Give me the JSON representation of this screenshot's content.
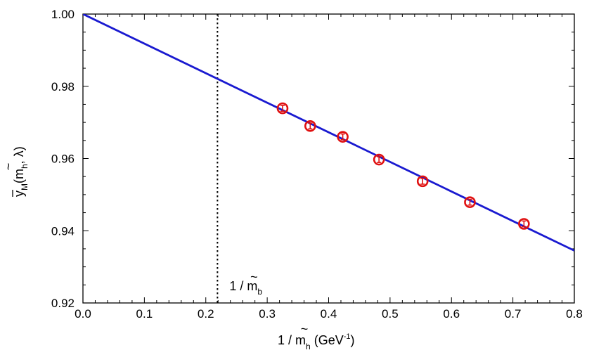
{
  "chart_data": {
    "type": "scatter",
    "xlim": [
      0.0,
      0.8
    ],
    "ylim": [
      0.92,
      1.0
    ],
    "xticks": [
      "0.0",
      "0.1",
      "0.2",
      "0.3",
      "0.4",
      "0.5",
      "0.6",
      "0.7",
      "0.8"
    ],
    "yticks": [
      "0.92",
      "0.94",
      "0.96",
      "0.98",
      "1.00"
    ],
    "xlabel": {
      "prefix": "1 / ",
      "symbol": "m",
      "tilde": "~",
      "subscript": "h",
      "unit_open": "  (GeV",
      "unit_sup": "-1",
      "unit_close": ")"
    },
    "ylabel": {
      "symbol": "y",
      "subscript": "M",
      "open": "(",
      "m": "m",
      "tilde": "~",
      "m_sub": "h",
      "rest": ", λ)"
    },
    "points": [
      {
        "x": 0.325,
        "y": 0.9739,
        "err": 0.0008
      },
      {
        "x": 0.37,
        "y": 0.969,
        "err": 0.0008
      },
      {
        "x": 0.423,
        "y": 0.966,
        "err": 0.0008
      },
      {
        "x": 0.482,
        "y": 0.9597,
        "err": 0.0008
      },
      {
        "x": 0.553,
        "y": 0.9537,
        "err": 0.0008
      },
      {
        "x": 0.63,
        "y": 0.9479,
        "err": 0.0008
      },
      {
        "x": 0.718,
        "y": 0.9419,
        "err": 0.0008
      }
    ],
    "fit_line": {
      "x": [
        0.0,
        0.8
      ],
      "y": [
        1.0,
        0.9345
      ]
    },
    "vline": {
      "x": 0.219,
      "label": {
        "prefix": "1 / ",
        "symbol": "m",
        "tilde": "~",
        "subscript": "b"
      }
    },
    "colors": {
      "line": "#1a1ad0",
      "points": "#e01010",
      "vline": "#000000",
      "axes": "#000000"
    },
    "grid": false,
    "legend": "none"
  }
}
